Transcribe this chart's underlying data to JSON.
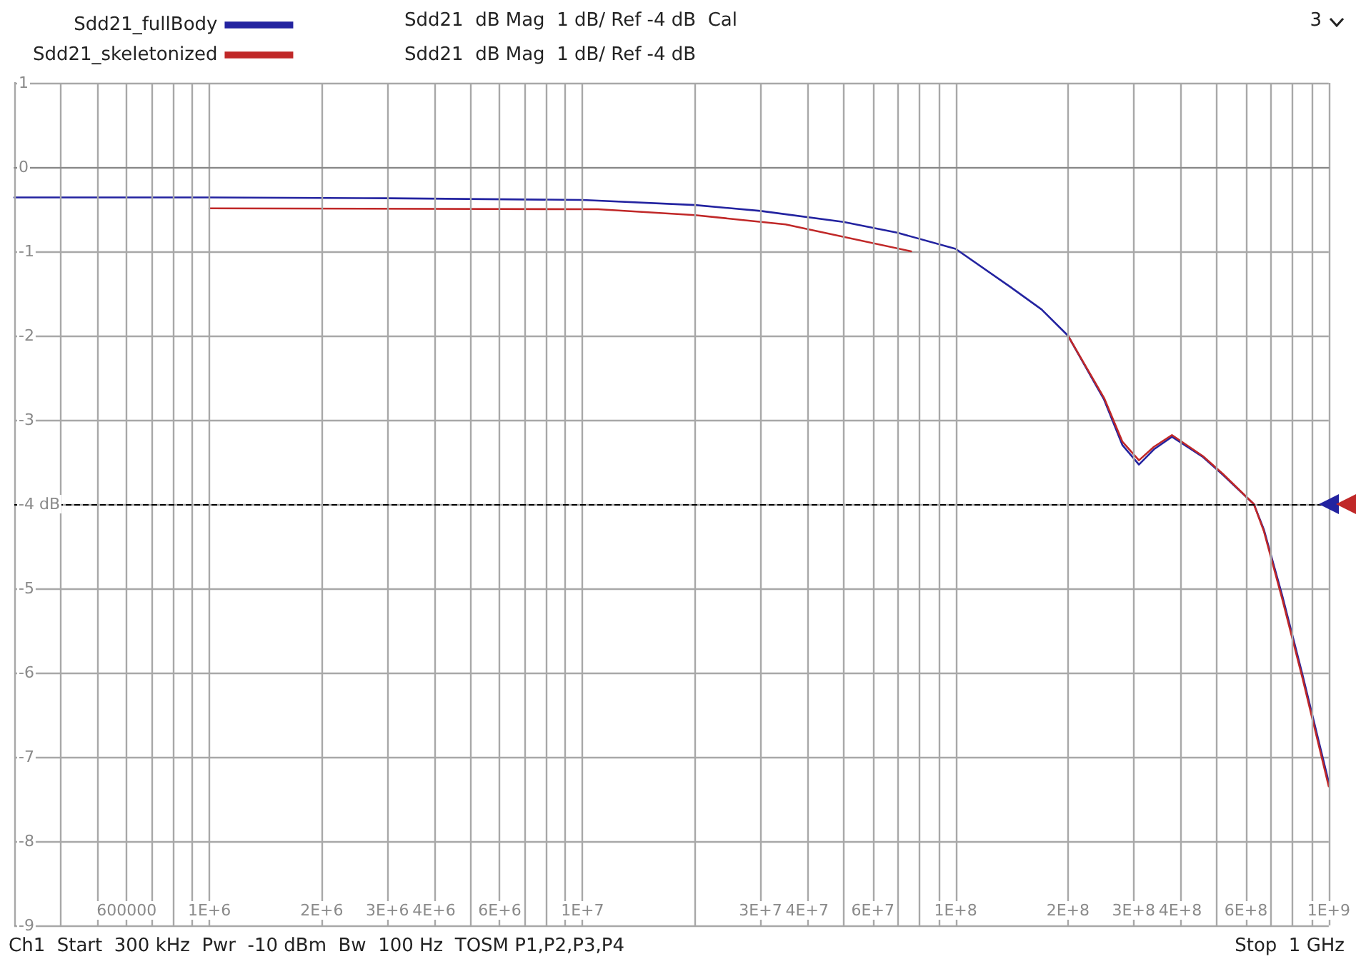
{
  "chart_data": {
    "type": "line",
    "annotations": [
      "Sdd21  dB Mag  1 dB/ Ref -4 dB  Cal",
      "Sdd21  dB Mag  1 dB/ Ref -4 dB",
      "3",
      "Ch1  Start  300 kHz  Pwr  -10 dBm  Bw  100 Hz  TOSM P1,P2,P3,P4",
      "Stop  1 GHz"
    ],
    "series": [
      {
        "name": "Sdd21_fullBody",
        "color": "#2323a0",
        "x": [
          300000,
          1000000,
          3000000,
          10000000,
          20000000,
          30000000,
          50000000,
          70000000,
          100000000,
          140000000,
          170000000,
          200000000,
          250000000,
          280000000,
          310000000,
          340000000,
          380000000,
          460000000,
          520000000,
          630000000,
          670000000,
          750000000,
          850000000,
          1000000000
        ],
        "values": [
          -0.36,
          -0.36,
          -0.37,
          -0.39,
          -0.45,
          -0.52,
          -0.65,
          -0.78,
          -0.97,
          -1.42,
          -1.69,
          -2.0,
          -2.76,
          -3.3,
          -3.53,
          -3.35,
          -3.2,
          -3.44,
          -3.65,
          -4.0,
          -4.3,
          -5.08,
          -6.02,
          -7.3
        ]
      },
      {
        "name": "Sdd21_skeletonized",
        "color": "#c02828",
        "x": [
          1000000,
          11000000,
          20000000,
          35000000,
          76000000,
          100000000,
          200000000,
          250000000,
          280000000,
          310000000,
          340000000,
          380000000,
          460000000,
          520000000,
          630000000,
          670000000,
          750000000,
          850000000,
          1000000000
        ],
        "values": [
          -0.49,
          -0.5,
          -0.57,
          -0.68,
          -1.0,
          null,
          -2.0,
          -2.74,
          -3.26,
          -3.48,
          -3.32,
          -3.18,
          -3.43,
          -3.64,
          -4.0,
          -4.32,
          -5.12,
          -6.06,
          -7.35
        ]
      }
    ],
    "xlim": [
      300000,
      1000000000
    ],
    "xticks": [
      {
        "value": 300000,
        "label": null
      },
      {
        "value": 400000,
        "label": null
      },
      {
        "value": 500000,
        "label": null
      },
      600000,
      {
        "value": 700000,
        "label": null
      },
      {
        "value": 800000,
        "label": null
      },
      {
        "value": 900000,
        "label": null
      },
      {
        "value": 1000000,
        "label": "1E+6"
      },
      {
        "value": 2000000,
        "label": "2E+6"
      },
      {
        "value": 3000000,
        "label": "3E+6"
      },
      {
        "value": 4000000,
        "label": "4E+6"
      },
      {
        "value": 5000000,
        "label": null
      },
      {
        "value": 6000000,
        "label": "6E+6"
      },
      {
        "value": 7000000,
        "label": null
      },
      {
        "value": 8000000,
        "label": null
      },
      {
        "value": 9000000,
        "label": null
      },
      {
        "value": 10000000,
        "label": "1E+7"
      },
      {
        "value": 20000000,
        "label": null
      },
      {
        "value": 30000000,
        "label": "3E+7"
      },
      {
        "value": 40000000,
        "label": "4E+7"
      },
      {
        "value": 50000000,
        "label": null
      },
      {
        "value": 60000000,
        "label": "6E+7"
      },
      {
        "value": 70000000,
        "label": null
      },
      {
        "value": 80000000,
        "label": null
      },
      {
        "value": 90000000,
        "label": null
      },
      {
        "value": 100000000,
        "label": "1E+8"
      },
      {
        "value": 200000000,
        "label": "2E+8"
      },
      {
        "value": 300000000,
        "label": "3E+8"
      },
      {
        "value": 400000000,
        "label": "4E+8"
      },
      {
        "value": 500000000,
        "label": null
      },
      {
        "value": 600000000,
        "label": "6E+8"
      },
      {
        "value": 700000000,
        "label": null
      },
      {
        "value": 800000000,
        "label": null
      },
      {
        "value": 900000000,
        "label": null
      },
      {
        "value": 1000000000,
        "label": "1E+9"
      }
    ],
    "ylim": [
      -9,
      1
    ],
    "yticks": [
      -9,
      -8,
      -7,
      -6,
      -5,
      {
        "value": -4,
        "label": "-4 dB"
      },
      -3,
      -2,
      -1,
      0,
      1
    ],
    "log": "x",
    "grid": true,
    "legend": "top left",
    "marker": "none",
    "line_style": "solid",
    "ref_lines": [
      {
        "axis": "y",
        "value": -4,
        "color": "#000000",
        "line_style": "dashed"
      }
    ]
  }
}
